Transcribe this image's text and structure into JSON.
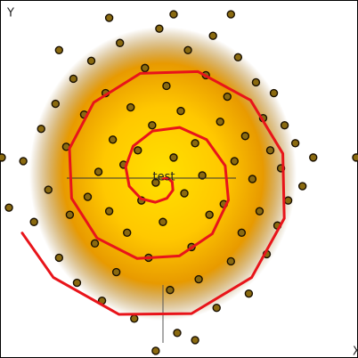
{
  "chart_data": {
    "type": "scatter",
    "x_label": "X",
    "y_label": "Y",
    "annotation": "test",
    "xlim": [
      -4.55,
      5.45
    ],
    "ylim": [
      -5,
      5
    ],
    "series": [
      {
        "name": "points",
        "type": "scatter",
        "color": "#8a6a10",
        "x": [
          -3.9,
          -3.6,
          -3.4,
          -3.2,
          -3.0,
          -2.9,
          -2.7,
          -2.6,
          -2.5,
          -2.4,
          -2.2,
          -2.1,
          -2.0,
          -1.9,
          -1.8,
          -1.7,
          -1.6,
          -1.5,
          -1.4,
          -1.3,
          -1.2,
          -1.1,
          -1.0,
          -0.9,
          -0.8,
          -0.7,
          -0.6,
          -0.5,
          -0.4,
          -0.3,
          -0.2,
          -0.1,
          0.0,
          0.1,
          0.2,
          0.3,
          0.4,
          0.5,
          0.6,
          0.7,
          0.8,
          0.9,
          1.0,
          1.1,
          1.2,
          1.3,
          1.4,
          1.5,
          1.6,
          1.7,
          1.8,
          1.9,
          2.0,
          2.1,
          2.2,
          2.3,
          2.4,
          2.5,
          2.6,
          2.7,
          2.8,
          2.9,
          3.0,
          3.1,
          3.2,
          3.3,
          3.4,
          3.5,
          3.7,
          3.9,
          4.2,
          -4.3,
          -4.5,
          0.3,
          -0.2,
          5.4,
          -1.5,
          1.9,
          0.9,
          -2.9
        ],
        "y": [
          0.5,
          -1.2,
          1.4,
          -0.3,
          2.1,
          -2.2,
          0.9,
          -1.0,
          2.8,
          -2.9,
          1.8,
          -0.5,
          3.3,
          -1.8,
          0.2,
          -3.4,
          2.4,
          -0.9,
          1.1,
          -2.6,
          3.8,
          0.4,
          -1.5,
          2.0,
          -3.9,
          0.8,
          -0.6,
          3.1,
          -2.2,
          1.5,
          -0.1,
          4.2,
          -1.2,
          2.6,
          -3.1,
          0.6,
          -4.3,
          1.9,
          -0.4,
          3.6,
          -1.9,
          1.0,
          -2.8,
          0.1,
          2.9,
          -1.0,
          4.0,
          -3.6,
          1.6,
          -0.7,
          2.3,
          -2.3,
          0.5,
          3.4,
          -1.5,
          1.2,
          -3.2,
          0.0,
          2.7,
          -0.9,
          1.7,
          -2.1,
          0.8,
          2.4,
          -1.3,
          0.3,
          1.5,
          -0.6,
          1.0,
          -0.2,
          0.6,
          -0.8,
          0.6,
          4.6,
          -4.8,
          0.6,
          4.5,
          4.6,
          -4.5,
          3.6
        ]
      },
      {
        "name": "spiral",
        "type": "line",
        "color": "#e8141a",
        "x": [
          0,
          0.13,
          0.26,
          0.28,
          0.11,
          -0.21,
          -0.61,
          -0.94,
          -1.04,
          -0.83,
          -0.29,
          0.47,
          1.22,
          1.74,
          1.83,
          1.38,
          0.46,
          -0.72,
          -1.84,
          -2.55,
          -2.61,
          -1.93,
          -0.63,
          0.98,
          2.45,
          3.35,
          3.39,
          2.48,
          0.8,
          -1.23,
          -3.06,
          -3.93
        ],
        "y": [
          0,
          0.03,
          -0.08,
          -0.31,
          -0.54,
          -0.65,
          -0.55,
          -0.2,
          0.34,
          0.92,
          1.34,
          1.44,
          1.1,
          0.37,
          -0.59,
          -1.53,
          -2.15,
          -2.22,
          -1.65,
          -0.54,
          0.85,
          2.14,
          2.95,
          3.0,
          2.2,
          0.71,
          -1.1,
          -2.75,
          -3.76,
          -3.78,
          -2.75,
          -1.51
        ]
      }
    ]
  }
}
